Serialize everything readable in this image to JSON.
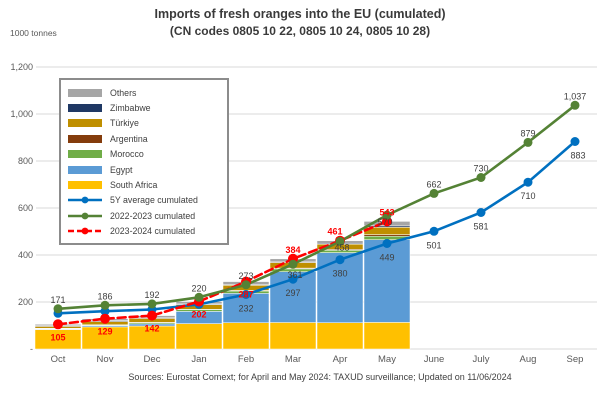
{
  "title": "Imports of fresh oranges into the EU (cumulated)",
  "subtitle": "(CN codes 0805 10 22, 0805 10 24, 0805 10 28)",
  "y_axis_unit": "1000 tonnes",
  "source_note": "Sources: Eurostat Comext; for April and May 2024: TAXUD surveillance; Updated on 11/06/2024",
  "legend": {
    "items": [
      {
        "label": "Others",
        "color": "#A6A6A6",
        "swatch": "bar"
      },
      {
        "label": "Zimbabwe",
        "color": "#1F3864",
        "swatch": "bar"
      },
      {
        "label": "Türkiye",
        "color": "#BF8F00",
        "swatch": "bar"
      },
      {
        "label": "Argentina",
        "color": "#843C0C",
        "swatch": "bar"
      },
      {
        "label": "Morocco",
        "color": "#70AD47",
        "swatch": "bar"
      },
      {
        "label": "Egypt",
        "color": "#5B9BD5",
        "swatch": "bar"
      },
      {
        "label": "South Africa",
        "color": "#FFC000",
        "swatch": "bar"
      },
      {
        "label": "5Y  average cumulated",
        "color": "#0070C0",
        "swatch": "line",
        "dashed": false
      },
      {
        "label": "2022-2023 cumulated",
        "color": "#548235",
        "swatch": "line",
        "dashed": false
      },
      {
        "label": "2023-2024 cumulated",
        "color": "#FF0000",
        "swatch": "line",
        "dashed": true
      }
    ]
  },
  "chart_data": {
    "type": "combo-stacked-bar-and-line",
    "categories": [
      "Oct",
      "Nov",
      "Dec",
      "Jan",
      "Feb",
      "Mar",
      "Apr",
      "May",
      "June",
      "July",
      "Aug",
      "Sep"
    ],
    "ylabel": "1000 tonnes",
    "ylim": [
      0,
      1200
    ],
    "grid": true,
    "y_ticks": [
      {
        "value": 1200,
        "label": "1,200"
      },
      {
        "value": 1000,
        "label": "1,000"
      },
      {
        "value": 800,
        "label": "800"
      },
      {
        "value": 600,
        "label": "600"
      },
      {
        "value": 400,
        "label": "400"
      },
      {
        "value": 200,
        "label": "200"
      },
      {
        "value": 0,
        "label": "-"
      }
    ],
    "bar_note": "Stacked bars Oct-May = 2023-2024 season cumulated imports by origin; totals equal red line (105,129,142,202,287,384,461,543); per-country split estimated from pixels (not labelled in chart).",
    "bar_series": [
      {
        "name": "South Africa",
        "color": "#FFC000",
        "values": [
          82,
          94,
          98,
          108,
          112,
          113,
          112,
          113
        ]
      },
      {
        "name": "Egypt",
        "color": "#5B9BD5",
        "values": [
          3,
          5,
          9,
          52,
          125,
          216,
          298,
          352
        ]
      },
      {
        "name": "Morocco",
        "color": "#70AD47",
        "values": [
          2,
          3,
          5,
          8,
          10,
          12,
          10,
          15
        ]
      },
      {
        "name": "Argentina",
        "color": "#843C0C",
        "values": [
          1,
          1,
          1,
          1,
          2,
          3,
          4,
          7
        ]
      },
      {
        "name": "Türkiye",
        "color": "#BF8F00",
        "values": [
          8,
          14,
          17,
          20,
          22,
          24,
          22,
          31
        ]
      },
      {
        "name": "Zimbabwe",
        "color": "#1F3864",
        "values": [
          3,
          4,
          4,
          3,
          3,
          3,
          4,
          6
        ]
      },
      {
        "name": "Others",
        "color": "#A6A6A6",
        "values": [
          6,
          8,
          8,
          10,
          13,
          13,
          11,
          19
        ]
      }
    ],
    "line_series": [
      {
        "name": "5Y  average cumulated",
        "color": "#0070C0",
        "style": "solid",
        "values": [
          152,
          161,
          168,
          190,
          232,
          297,
          380,
          449,
          501,
          581,
          710,
          883
        ],
        "labels": [
          null,
          null,
          null,
          null,
          "232",
          "297",
          "380",
          "449",
          "501",
          "581",
          "710",
          "883"
        ]
      },
      {
        "name": "2022-2023 cumulated",
        "color": "#548235",
        "style": "solid",
        "values": [
          171,
          186,
          192,
          220,
          273,
          361,
          458,
          570,
          662,
          730,
          879,
          1037
        ],
        "labels": [
          "171",
          "186",
          "192",
          "220",
          "273",
          "361",
          "458",
          "570",
          "662",
          "730",
          "879",
          "1,037"
        ]
      },
      {
        "name": "2023-2024 cumulated",
        "color": "#FF0000",
        "style": "dashed",
        "values": [
          105,
          129,
          142,
          202,
          287,
          384,
          461,
          543
        ],
        "labels": [
          "105",
          "129",
          "142",
          "202",
          "287",
          "384",
          "461",
          "543"
        ]
      }
    ]
  }
}
